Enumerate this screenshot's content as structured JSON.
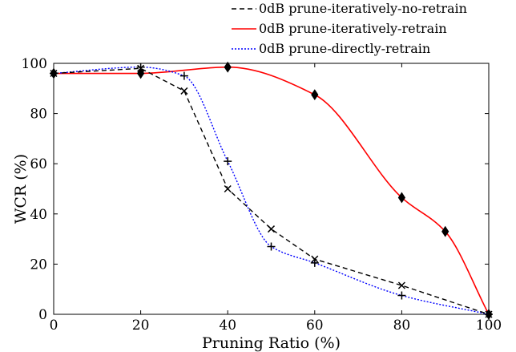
{
  "chart_data": {
    "type": "line",
    "title": "",
    "xlabel": "Pruning Ratio (%)",
    "ylabel": "WCR (%)",
    "xlim": [
      0,
      100
    ],
    "ylim": [
      0,
      100
    ],
    "xticks": [
      0,
      20,
      40,
      60,
      80,
      100
    ],
    "yticks": [
      0,
      20,
      40,
      60,
      80,
      100
    ],
    "grid": false,
    "legend_position": "top-right",
    "series": [
      {
        "name": "0dB prune-iteratively-no-retrain",
        "color": "#000000",
        "line_style": "dashed",
        "marker": "x",
        "x": [
          0,
          20,
          30,
          40,
          50,
          60,
          80,
          100
        ],
        "y": [
          96,
          98,
          89,
          50,
          34,
          22,
          11.5,
          0
        ]
      },
      {
        "name": "0dB prune-iteratively-retrain",
        "color": "#ff0000",
        "line_style": "solid",
        "marker": "diamond",
        "x": [
          0,
          20,
          40,
          60,
          80,
          90,
          100
        ],
        "y": [
          96,
          96,
          98.5,
          87.5,
          46.5,
          33,
          0
        ]
      },
      {
        "name": "0dB prune-directly-retrain",
        "color": "#0000ff",
        "line_style": "dotted",
        "marker": "plus",
        "x": [
          0,
          20,
          30,
          40,
          50,
          60,
          80,
          100
        ],
        "y": [
          96,
          98.5,
          95,
          61,
          27,
          20.5,
          7.5,
          0
        ]
      }
    ]
  }
}
